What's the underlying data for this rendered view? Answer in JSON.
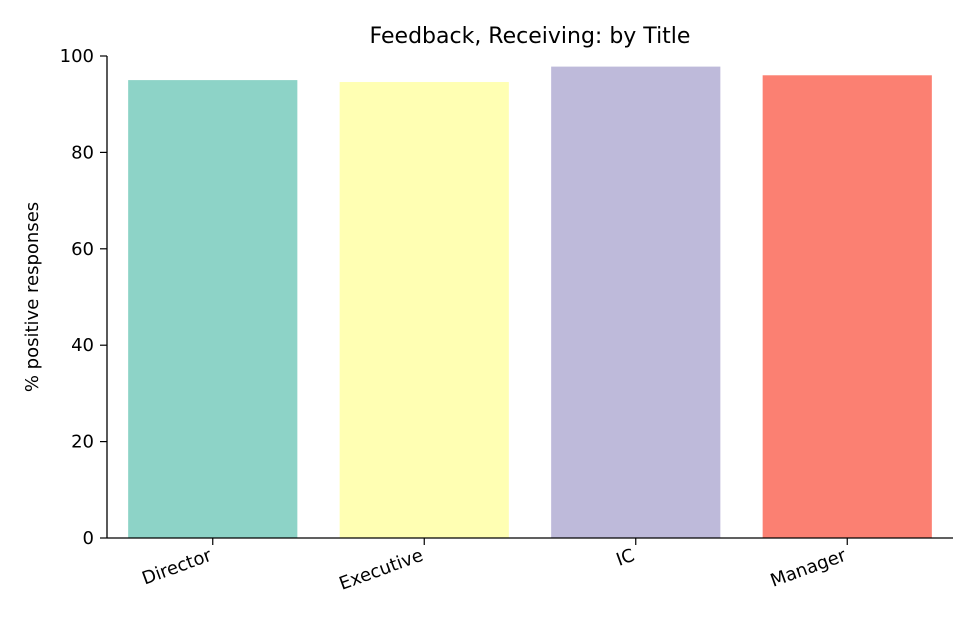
{
  "chart_data": {
    "type": "bar",
    "title": "Feedback, Receiving: by Title",
    "xlabel": "",
    "ylabel": "% positive responses",
    "categories": [
      "Director",
      "Executive",
      "IC",
      "Manager"
    ],
    "values": [
      95.0,
      94.6,
      97.8,
      96.0
    ],
    "colors": [
      "#8dd3c7",
      "#ffffb3",
      "#bebada",
      "#fb8072"
    ],
    "ylim": [
      0,
      100
    ],
    "yticks": [
      0,
      20,
      40,
      60,
      80,
      100
    ],
    "grid": false,
    "legend": "none"
  }
}
